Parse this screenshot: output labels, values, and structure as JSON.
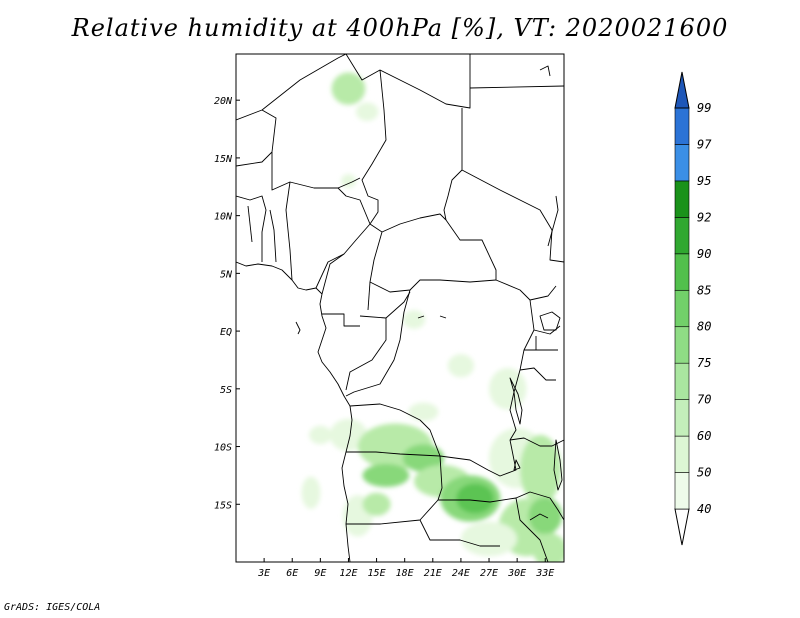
{
  "title": "Relative humidity at 400hPa [%], VT: 2020021600",
  "credit": "GrADS: IGES/COLA",
  "variable": "Relative humidity",
  "level": "400hPa",
  "units": "%",
  "valid_time": "2020021600",
  "map": {
    "lon_range": [
      0,
      35
    ],
    "lat_range": [
      -20,
      24
    ],
    "lon_labels": [
      {
        "lon": 3,
        "label": "3E"
      },
      {
        "lon": 6,
        "label": "6E"
      },
      {
        "lon": 9,
        "label": "9E"
      },
      {
        "lon": 12,
        "label": "12E"
      },
      {
        "lon": 15,
        "label": "15E"
      },
      {
        "lon": 18,
        "label": "18E"
      },
      {
        "lon": 21,
        "label": "21E"
      },
      {
        "lon": 24,
        "label": "24E"
      },
      {
        "lon": 27,
        "label": "27E"
      },
      {
        "lon": 30,
        "label": "30E"
      },
      {
        "lon": 33,
        "label": "33E"
      }
    ],
    "lat_labels": [
      {
        "lat": 20,
        "label": "20N"
      },
      {
        "lat": 15,
        "label": "15N"
      },
      {
        "lat": 10,
        "label": "10N"
      },
      {
        "lat": 5,
        "label": "5N"
      },
      {
        "lat": 0,
        "label": "EQ"
      },
      {
        "lat": -5,
        "label": "5S"
      },
      {
        "lat": -10,
        "label": "10S"
      },
      {
        "lat": -15,
        "label": "15S"
      }
    ]
  },
  "colorbar": {
    "levels": [
      "40",
      "50",
      "60",
      "70",
      "75",
      "80",
      "85",
      "90",
      "92",
      "95",
      "97",
      "99"
    ],
    "colors": [
      "#eefbea",
      "#dcf6d4",
      "#c4efbb",
      "#aae6a0",
      "#8fdc85",
      "#72d06a",
      "#52c04c",
      "#30a830",
      "#1a921a",
      "#3b8fe6",
      "#2b73d6",
      "#1e57b8"
    ],
    "under_color": "#ffffff",
    "over_color": "#1e57b8"
  },
  "colors": {
    "humid_light": "#e6f8df",
    "humid_mid": "#b8eaa8",
    "humid_strong": "#88d87a",
    "humid_peak": "#5cc452",
    "border": "#000000"
  }
}
